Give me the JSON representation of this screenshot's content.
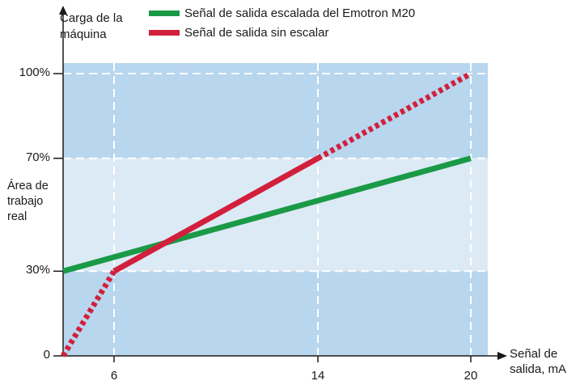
{
  "chart_data": {
    "type": "line",
    "ylabel": "Carga de la máquina",
    "xlabel": "Señal de salida, mA",
    "band_label": "Área de trabajo real",
    "x_ticks": [
      "6",
      "14",
      "20"
    ],
    "x_tick_values": [
      6,
      14,
      20
    ],
    "y_ticks": [
      "0",
      "30%",
      "70%",
      "100%"
    ],
    "y_tick_values": [
      0,
      30,
      70,
      100
    ],
    "xlim": [
      4,
      20
    ],
    "ylim": [
      0,
      100
    ],
    "work_band": [
      30,
      70
    ],
    "grid": true,
    "legend_position": "top",
    "series": [
      {
        "name": "Señal de salida escalada del Emotron M20",
        "color": "#1a9a46",
        "style": "solid",
        "x": [
          4,
          20
        ],
        "y": [
          30,
          70
        ]
      },
      {
        "name": "Señal de salida sin escalar",
        "color": "#d21f3c",
        "segments": [
          {
            "style": "dotted",
            "x": [
              4,
              6
            ],
            "y": [
              0,
              30
            ]
          },
          {
            "style": "solid",
            "x": [
              6,
              14
            ],
            "y": [
              30,
              70
            ]
          },
          {
            "style": "dotted",
            "x": [
              14,
              20
            ],
            "y": [
              70,
              100
            ]
          }
        ]
      }
    ]
  },
  "colors": {
    "outer_area": "#b8d6ee",
    "work_area": "#dceaf5",
    "grid": "#ffffff",
    "axis": "#1a1a1a"
  }
}
